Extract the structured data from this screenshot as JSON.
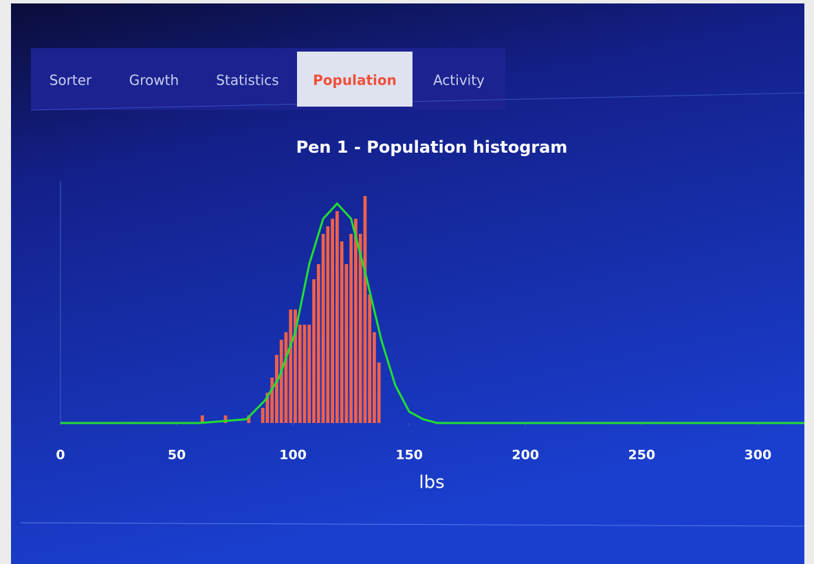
{
  "tabs": [
    "Sorter",
    "Growth",
    "Statistics",
    "Population",
    "Activity"
  ],
  "active_tab": 3,
  "chart_data": {
    "type": "histogram",
    "title": "Pen 1 - Population histogram",
    "xlabel": "lbs",
    "bins": [
      58,
      60,
      62,
      64,
      66,
      68,
      70,
      72,
      74,
      76,
      78,
      80,
      82,
      84,
      86,
      88,
      90,
      92,
      94,
      96,
      98,
      100,
      102,
      104,
      106,
      108,
      110,
      112,
      114,
      116,
      118,
      120,
      122,
      124,
      126,
      128,
      130,
      132,
      134,
      136,
      138
    ],
    "counts": [
      0,
      1,
      0,
      0,
      0,
      0,
      1,
      0,
      0,
      0,
      0,
      1,
      0,
      0,
      2,
      4,
      6,
      9,
      11,
      12,
      15,
      15,
      13,
      13,
      13,
      19,
      21,
      25,
      26,
      27,
      28,
      24,
      21,
      25,
      27,
      25,
      30,
      17,
      12,
      8
    ],
    "color": "#f0614a",
    "curve": {
      "x": [
        0,
        60,
        80,
        88,
        94,
        101,
        107,
        113,
        119,
        125,
        131,
        138,
        144,
        150,
        156,
        162,
        320
      ],
      "values": [
        0,
        0,
        0.5,
        3,
        6,
        12,
        21,
        27,
        29,
        27,
        20,
        11,
        5,
        1.5,
        0.5,
        0,
        0
      ],
      "color": "#22dd33"
    },
    "xlim": [
      0,
      320
    ],
    "ylim": [
      0,
      32
    ],
    "xticks": [
      0,
      50,
      100,
      150,
      200,
      250,
      300
    ]
  }
}
